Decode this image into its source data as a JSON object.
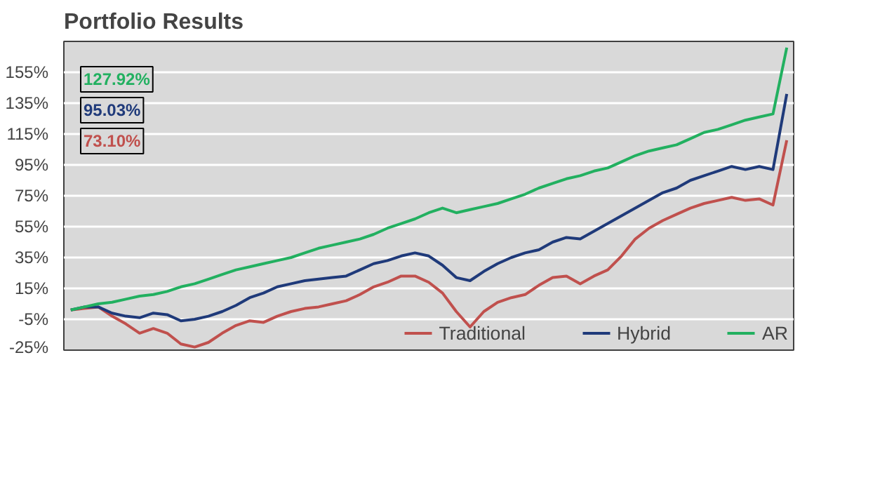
{
  "chart_data": {
    "type": "line",
    "title": "Portfolio Results",
    "categories": [
      null,
      null,
      null,
      null,
      null,
      null,
      null,
      null,
      null,
      null,
      null,
      null,
      null,
      null,
      null,
      null,
      null,
      null,
      null,
      null,
      null,
      null,
      null,
      null,
      null,
      null,
      null,
      null,
      null,
      null,
      null,
      null,
      null,
      null,
      null,
      null,
      null,
      null,
      null,
      null,
      null,
      null,
      null,
      null,
      null,
      null,
      null,
      null,
      null,
      null,
      null,
      null,
      null
    ],
    "series": [
      {
        "name": "Traditional",
        "color": "#c0504d",
        "values": [
          1,
          2,
          3,
          -3,
          -8,
          -14,
          -11,
          -14,
          -21,
          -23,
          -20,
          -14,
          -9,
          -6,
          -7,
          -3,
          0,
          2,
          3,
          5,
          7,
          11,
          16,
          19,
          23,
          23,
          19,
          12,
          0,
          -10,
          0,
          6,
          9,
          11,
          17,
          22,
          23,
          18,
          23,
          27,
          36,
          47,
          54,
          59,
          63,
          67,
          70,
          72,
          74,
          72,
          73,
          69,
          111
        ]
      },
      {
        "name": "Hybrid",
        "color": "#1f3a7a",
        "values": [
          1,
          3,
          3,
          -1,
          -3,
          -4,
          -1,
          -2,
          -6,
          -5,
          -3,
          0,
          4,
          9,
          12,
          16,
          18,
          20,
          21,
          22,
          23,
          27,
          31,
          33,
          36,
          38,
          36,
          30,
          22,
          20,
          26,
          31,
          35,
          38,
          40,
          45,
          48,
          47,
          52,
          57,
          62,
          67,
          72,
          77,
          80,
          85,
          88,
          91,
          94,
          92,
          94,
          92,
          141
        ]
      },
      {
        "name": "AR",
        "color": "#22b060",
        "values": [
          1,
          3,
          5,
          6,
          8,
          10,
          11,
          13,
          16,
          18,
          21,
          24,
          27,
          29,
          31,
          33,
          35,
          38,
          41,
          43,
          45,
          47,
          50,
          54,
          57,
          60,
          64,
          67,
          64,
          66,
          68,
          70,
          73,
          76,
          80,
          83,
          86,
          88,
          91,
          93,
          97,
          101,
          104,
          106,
          108,
          112,
          116,
          118,
          121,
          124,
          126,
          128,
          171
        ]
      }
    ],
    "ylim": [
      -25,
      175
    ],
    "yticks": [
      {
        "value": -25,
        "label": "-25%"
      },
      {
        "value": -5,
        "label": "-5%"
      },
      {
        "value": 15,
        "label": "15%"
      },
      {
        "value": 35,
        "label": "35%"
      },
      {
        "value": 55,
        "label": "55%"
      },
      {
        "value": 75,
        "label": "75%"
      },
      {
        "value": 95,
        "label": "95%"
      },
      {
        "value": 115,
        "label": "115%"
      },
      {
        "value": 135,
        "label": "135%"
      },
      {
        "value": 155,
        "label": "155%"
      }
    ],
    "annotations": [
      "73.10%",
      "95.03%",
      "127.92%"
    ],
    "grid": "y",
    "legend": "bottom",
    "tick_labels": "y",
    "marker": "none",
    "line_style": "solid"
  }
}
